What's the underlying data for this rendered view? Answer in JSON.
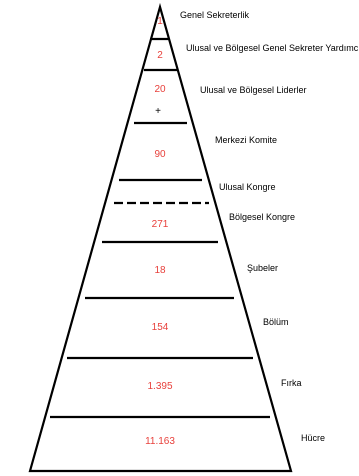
{
  "pyramid": {
    "levels": [
      {
        "value": "1",
        "label": "Genel Sekreterlik"
      },
      {
        "value": "2",
        "label": "Ulusal ve Bölgesel Genel Sekreter Yardımcıları"
      },
      {
        "value": "20",
        "label": "Ulusal ve Bölgesel Liderler"
      },
      {
        "value": "90",
        "label": "Merkezi Komite"
      },
      {
        "value": "",
        "label": "Ulusal Kongre"
      },
      {
        "value": "271",
        "label": "Bölgesel Kongre"
      },
      {
        "value": "18",
        "label": "Şubeler"
      },
      {
        "value": "154",
        "label": "Bölüm"
      },
      {
        "value": "1.395",
        "label": "Fırka"
      },
      {
        "value": "11.163",
        "label": "Hücre"
      }
    ],
    "plus_marker": "+",
    "value_color": "#e8413c"
  }
}
